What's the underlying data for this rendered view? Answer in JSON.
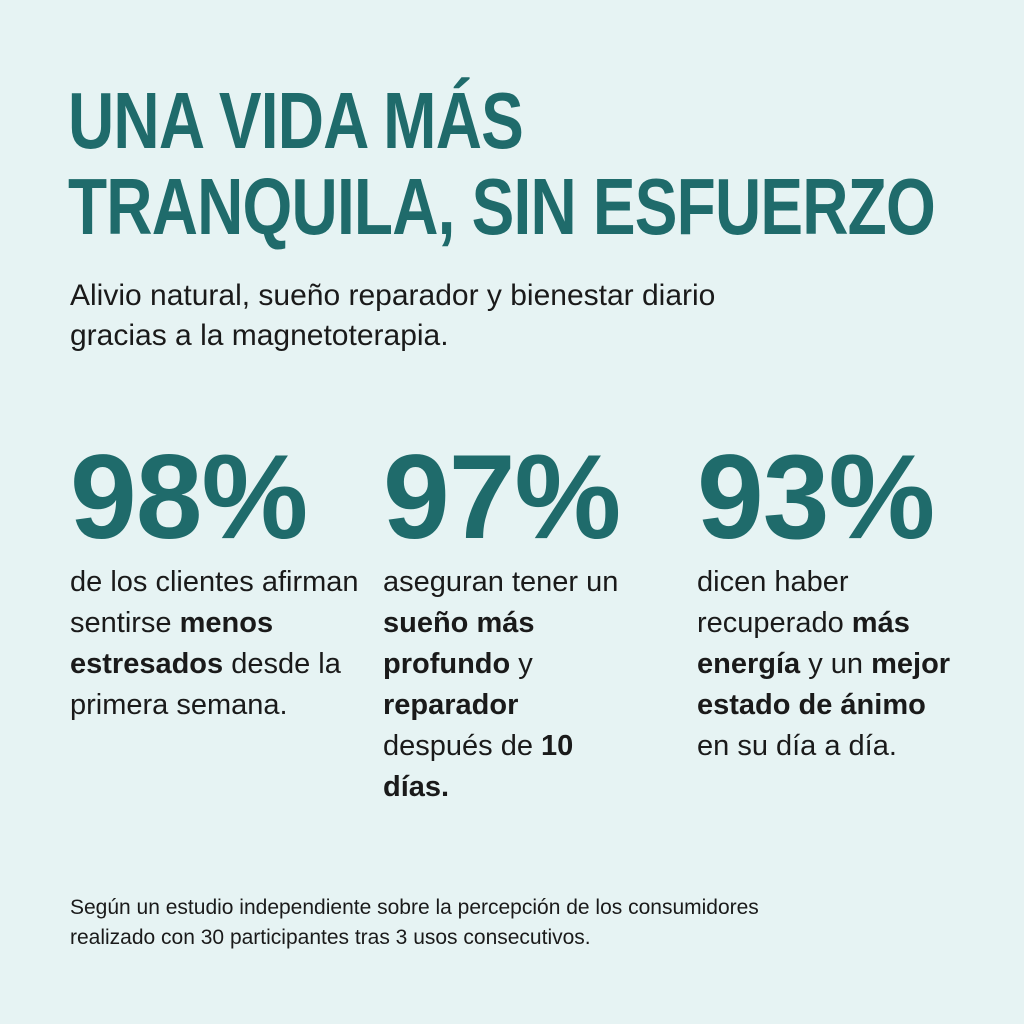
{
  "title": {
    "line1": "UNA VIDA MÁS",
    "line2": "TRANQUILA, SIN ESFUERZO"
  },
  "subtitle": {
    "line1": "Alivio natural, sueño reparador y bienestar diario",
    "line2": "gracias a la magnetoterapia."
  },
  "colors": {
    "accent": "#1f6b6b",
    "background": "#e6f3f3",
    "text": "#1a1a1a"
  },
  "stats": [
    {
      "value": "98%",
      "parts": [
        {
          "t": "de los clientes ",
          "b": false
        },
        {
          "t": "afirman sentirse ",
          "b": false
        },
        {
          "t": "menos estresados",
          "b": true
        },
        {
          "t": " desde la primera semana.",
          "b": false
        }
      ]
    },
    {
      "value": "97%",
      "parts": [
        {
          "t": "aseguran tener un ",
          "b": false
        },
        {
          "t": "sueño más profundo",
          "b": true
        },
        {
          "t": " y ",
          "b": false
        },
        {
          "t": "reparador",
          "b": true
        },
        {
          "t": " después de ",
          "b": false
        },
        {
          "t": "10 días.",
          "b": true
        }
      ]
    },
    {
      "value": "93%",
      "parts": [
        {
          "t": "dicen haber recuperado ",
          "b": false
        },
        {
          "t": "más energía",
          "b": true
        },
        {
          "t": " y un ",
          "b": false
        },
        {
          "t": "mejor estado de ánimo",
          "b": true
        },
        {
          "t": " en su día a día.",
          "b": false
        }
      ]
    }
  ],
  "footer": {
    "line1": "Según un estudio independiente sobre la percepción de los consumidores",
    "line2": "realizado con 30 participantes tras 3 usos consecutivos."
  }
}
